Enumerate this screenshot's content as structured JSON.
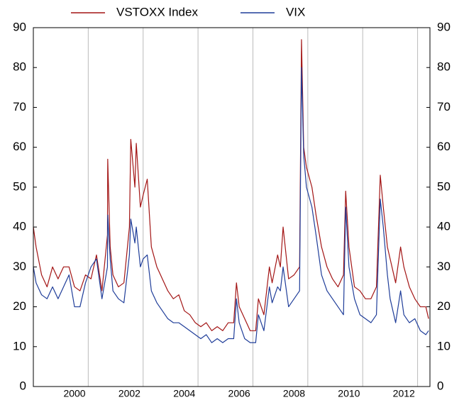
{
  "chart_data": {
    "type": "line",
    "x": [
      1999.0,
      1999.1,
      1999.3,
      1999.5,
      1999.7,
      1999.9,
      2000.1,
      2000.3,
      2000.5,
      2000.7,
      2000.9,
      2001.1,
      2001.3,
      2001.5,
      2001.7,
      2001.71,
      2001.8,
      2001.9,
      2002.1,
      2002.3,
      2002.5,
      2002.55,
      2002.7,
      2002.75,
      2002.9,
      2003.0,
      2003.15,
      2003.3,
      2003.5,
      2003.7,
      2003.9,
      2004.1,
      2004.3,
      2004.5,
      2004.7,
      2004.9,
      2005.1,
      2005.3,
      2005.5,
      2005.7,
      2005.9,
      2006.1,
      2006.3,
      2006.4,
      2006.5,
      2006.7,
      2006.9,
      2007.1,
      2007.2,
      2007.4,
      2007.6,
      2007.7,
      2007.9,
      2008.0,
      2008.1,
      2008.3,
      2008.5,
      2008.7,
      2008.77,
      2008.85,
      2008.95,
      2009.15,
      2009.3,
      2009.5,
      2009.7,
      2009.9,
      2010.1,
      2010.3,
      2010.38,
      2010.5,
      2010.7,
      2010.9,
      2011.1,
      2011.3,
      2011.5,
      2011.64,
      2011.75,
      2011.9,
      2012.0,
      2012.2,
      2012.38,
      2012.5,
      2012.7,
      2012.9,
      2013.1,
      2013.3,
      2013.4
    ],
    "series": [
      {
        "name": "VSTOXX Index",
        "color": "#a31515",
        "values": [
          40,
          35,
          28,
          25,
          30,
          27,
          30,
          30,
          25,
          24,
          28,
          27,
          33,
          24,
          38,
          57,
          35,
          28,
          25,
          26,
          40,
          62,
          50,
          61,
          45,
          48,
          52,
          35,
          30,
          27,
          24,
          22,
          23,
          19,
          18,
          16,
          15,
          16,
          14,
          15,
          14,
          16,
          16,
          26,
          20,
          17,
          14,
          14,
          22,
          18,
          30,
          26,
          33,
          30,
          40,
          27,
          28,
          30,
          87,
          60,
          55,
          50,
          43,
          35,
          30,
          27,
          25,
          28,
          49,
          35,
          25,
          24,
          22,
          22,
          25,
          53,
          45,
          35,
          32,
          26,
          35,
          30,
          25,
          22,
          20,
          20,
          17
        ]
      },
      {
        "name": "VIX",
        "color": "#1f3d99",
        "values": [
          30,
          26,
          23,
          22,
          25,
          22,
          25,
          28,
          20,
          20,
          26,
          30,
          32,
          22,
          30,
          43,
          32,
          24,
          22,
          21,
          33,
          42,
          36,
          40,
          30,
          32,
          33,
          24,
          21,
          19,
          17,
          16,
          16,
          15,
          14,
          13,
          12,
          13,
          11,
          12,
          11,
          12,
          12,
          22,
          16,
          12,
          11,
          11,
          18,
          14,
          25,
          21,
          25,
          24,
          30,
          20,
          22,
          24,
          80,
          58,
          50,
          45,
          38,
          28,
          24,
          22,
          20,
          18,
          45,
          30,
          22,
          18,
          17,
          16,
          18,
          47,
          40,
          28,
          22,
          16,
          24,
          18,
          16,
          17,
          14,
          13,
          14
        ]
      }
    ],
    "xlim": [
      1999.0,
      2013.45
    ],
    "xticks": [
      {
        "value": 2000.5,
        "label": "2000"
      },
      {
        "value": 2002.5,
        "label": "2002"
      },
      {
        "value": 2004.5,
        "label": "2004"
      },
      {
        "value": 2006.5,
        "label": "2006"
      },
      {
        "value": 2008.5,
        "label": "2008"
      },
      {
        "value": 2010.5,
        "label": "2010"
      },
      {
        "value": 2012.5,
        "label": "2012"
      }
    ],
    "xgrid": [
      2001,
      2003,
      2005,
      2007,
      2009,
      2011,
      2013
    ],
    "ylim": [
      0,
      90
    ],
    "yticks": [
      0,
      10,
      20,
      30,
      40,
      50,
      60,
      70,
      80,
      90
    ],
    "right_axis": true,
    "legend": "top"
  }
}
